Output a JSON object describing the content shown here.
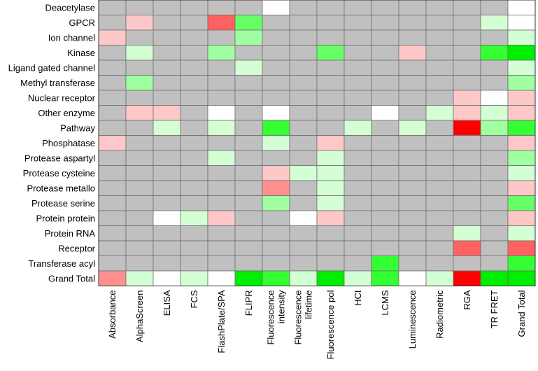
{
  "chart_data": {
    "type": "heatmap",
    "rows": [
      "Deacetylase",
      "GPCR",
      "Ion channel",
      "Kinase",
      "Ligand gated channel",
      "Methyl transferase",
      "Nuclear receptor",
      "Other enzyme",
      "Pathway",
      "Phosphatase",
      "Protease aspartyl",
      "Protease cysteine",
      "Protease metallo",
      "Protease serine",
      "Protein protein",
      "Protein RNA",
      "Receptor",
      "Transferase acyl",
      "Grand Total"
    ],
    "columns": [
      {
        "lines": [
          "Absorbance"
        ]
      },
      {
        "lines": [
          "AlphaScreen"
        ]
      },
      {
        "lines": [
          "ELISA"
        ]
      },
      {
        "lines": [
          "FCS"
        ]
      },
      {
        "lines": [
          "FlashPlate/SPA"
        ]
      },
      {
        "lines": [
          "FLIPR"
        ]
      },
      {
        "lines": [
          "Fluorescence",
          "intensity"
        ]
      },
      {
        "lines": [
          "Fluorescence",
          "lifetime"
        ]
      },
      {
        "lines": [
          "Fluorescence pol"
        ]
      },
      {
        "lines": [
          "HCI"
        ]
      },
      {
        "lines": [
          "LCMS"
        ]
      },
      {
        "lines": [
          "Luminescence"
        ]
      },
      {
        "lines": [
          "Radiometric"
        ]
      },
      {
        "lines": [
          "RGA"
        ]
      },
      {
        "lines": [
          "TR FRET"
        ]
      },
      {
        "lines": [
          "Grand Total"
        ]
      }
    ],
    "legend": {
      "g": "#c0c0c0",
      "w": "#ffffff",
      "p1": "#ffc8c8",
      "p2": "#ff9090",
      "p3": "#ff6060",
      "p4": "#ff0000",
      "l1": "#d4ffd4",
      "l2": "#a0ff a0",
      "l3": "#66ff66",
      "l4": "#33ff33",
      "l5": "#00ee00"
    },
    "cells": [
      [
        "g",
        "g",
        "g",
        "g",
        "g",
        "g",
        "w",
        "g",
        "g",
        "g",
        "g",
        "g",
        "g",
        "g",
        "g",
        "w"
      ],
      [
        "g",
        "p1",
        "g",
        "g",
        "p3",
        "l3",
        "g",
        "g",
        "g",
        "g",
        "g",
        "g",
        "g",
        "g",
        "l1",
        "w"
      ],
      [
        "p1",
        "g",
        "g",
        "g",
        "g",
        "l2",
        "g",
        "g",
        "g",
        "g",
        "g",
        "g",
        "g",
        "g",
        "g",
        "l1"
      ],
      [
        "g",
        "l1",
        "g",
        "g",
        "l2",
        "g",
        "g",
        "g",
        "l3",
        "g",
        "g",
        "p1",
        "g",
        "g",
        "l4",
        "l5"
      ],
      [
        "g",
        "g",
        "g",
        "g",
        "g",
        "l1",
        "g",
        "g",
        "g",
        "g",
        "g",
        "g",
        "g",
        "g",
        "g",
        "l1"
      ],
      [
        "g",
        "l2",
        "g",
        "g",
        "g",
        "g",
        "g",
        "g",
        "g",
        "g",
        "g",
        "g",
        "g",
        "g",
        "g",
        "l2"
      ],
      [
        "g",
        "g",
        "g",
        "g",
        "g",
        "g",
        "g",
        "g",
        "g",
        "g",
        "g",
        "g",
        "g",
        "p1",
        "w",
        "p1"
      ],
      [
        "g",
        "p1",
        "p1",
        "g",
        "w",
        "g",
        "w",
        "g",
        "g",
        "g",
        "w",
        "g",
        "l1",
        "p1",
        "l1",
        "p1"
      ],
      [
        "g",
        "g",
        "l1",
        "g",
        "l1",
        "g",
        "l4",
        "g",
        "g",
        "l1",
        "g",
        "l1",
        "g",
        "p4",
        "l2",
        "l4"
      ],
      [
        "p1",
        "g",
        "g",
        "g",
        "g",
        "g",
        "l1",
        "g",
        "p1",
        "g",
        "g",
        "g",
        "g",
        "g",
        "g",
        "p1"
      ],
      [
        "g",
        "g",
        "g",
        "g",
        "l1",
        "g",
        "g",
        "g",
        "l1",
        "g",
        "g",
        "g",
        "g",
        "g",
        "g",
        "l2"
      ],
      [
        "g",
        "g",
        "g",
        "g",
        "g",
        "g",
        "p1",
        "l1",
        "l1",
        "g",
        "g",
        "g",
        "g",
        "g",
        "g",
        "l1"
      ],
      [
        "g",
        "g",
        "g",
        "g",
        "g",
        "g",
        "p2",
        "g",
        "l1",
        "g",
        "g",
        "g",
        "g",
        "g",
        "g",
        "p1"
      ],
      [
        "g",
        "g",
        "g",
        "g",
        "g",
        "g",
        "l2",
        "g",
        "l1",
        "g",
        "g",
        "g",
        "g",
        "g",
        "g",
        "l3"
      ],
      [
        "g",
        "g",
        "w",
        "l1",
        "p1",
        "g",
        "g",
        "w",
        "p1",
        "g",
        "g",
        "g",
        "g",
        "g",
        "g",
        "p1"
      ],
      [
        "g",
        "g",
        "g",
        "g",
        "g",
        "g",
        "g",
        "g",
        "g",
        "g",
        "g",
        "g",
        "g",
        "l1",
        "g",
        "l1"
      ],
      [
        "g",
        "g",
        "g",
        "g",
        "g",
        "g",
        "g",
        "g",
        "g",
        "g",
        "g",
        "g",
        "g",
        "p3",
        "g",
        "p3"
      ],
      [
        "g",
        "g",
        "g",
        "g",
        "g",
        "g",
        "g",
        "g",
        "g",
        "g",
        "l4",
        "g",
        "g",
        "g",
        "g",
        "l4"
      ],
      [
        "p2",
        "l1",
        "w",
        "l1",
        "w",
        "l5",
        "l4",
        "l1",
        "l5",
        "l1",
        "l4",
        "w",
        "l1",
        "p4",
        "l5",
        "l5"
      ]
    ],
    "grid": true
  }
}
